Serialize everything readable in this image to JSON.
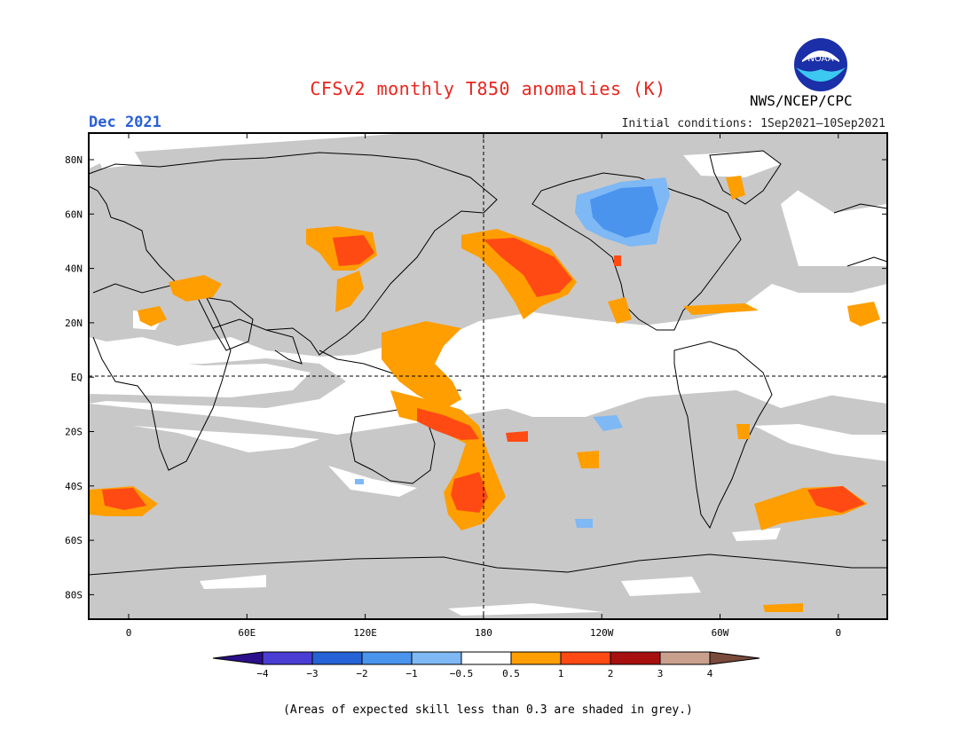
{
  "title": "CFSv2 monthly T850 anomalies (K)",
  "valid_month": "Dec 2021",
  "agency": "NWS/NCEP/CPC",
  "logo_text": "NOAA",
  "initial_conditions": "Initial conditions: 1Sep2021—10Sep2021",
  "footnote": "(Areas of expected skill less than 0.3 are shaded in grey.)",
  "lat_labels": [
    "80N",
    "60N",
    "40N",
    "20N",
    "EQ",
    "20S",
    "40S",
    "60S",
    "80S"
  ],
  "lon_labels": [
    "0",
    "60E",
    "120E",
    "180",
    "120W",
    "60W",
    "0"
  ],
  "colorbar": {
    "ticks": [
      "−4",
      "−3",
      "−2",
      "−1",
      "−0.5",
      "0.5",
      "1",
      "2",
      "3",
      "4"
    ],
    "colors": [
      "#2b0f8a",
      "#4a3dd4",
      "#2563d6",
      "#4a94ee",
      "#7eb8f5",
      "#ffffff",
      "#ff9e00",
      "#ff4a14",
      "#a80f0f",
      "#c9a08e",
      "#7a4a3a"
    ]
  },
  "colors": {
    "low_skill_grey": "#c8c8c8",
    "title_red": "#e8261e",
    "month_blue": "#2a5fd8"
  }
}
